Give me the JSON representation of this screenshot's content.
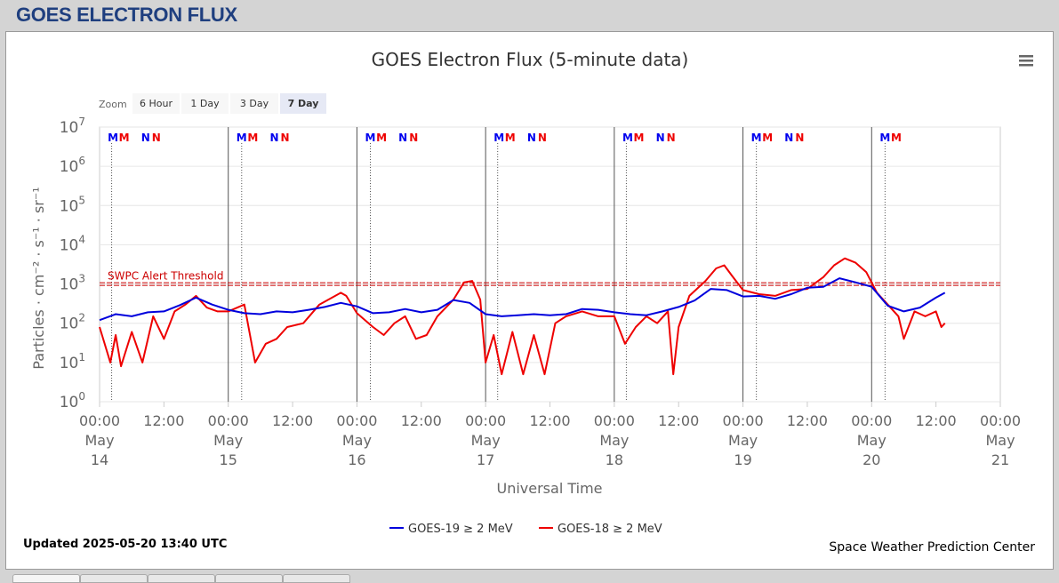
{
  "page": {
    "title": "GOES ELECTRON FLUX"
  },
  "chart_data": {
    "type": "line",
    "title": "GOES Electron Flux (5-minute data)",
    "xlabel": "Universal Time",
    "ylabel": "Particles · cm⁻² · s⁻¹ · sr⁻¹",
    "yscale": "log",
    "ylim": [
      1,
      10000000
    ],
    "xlim": [
      "2025-05-14 00:00",
      "2025-05-21 00:00"
    ],
    "yticks": [
      {
        "value": 1,
        "base": "10",
        "exp": "0"
      },
      {
        "value": 10,
        "base": "10",
        "exp": "1"
      },
      {
        "value": 100,
        "base": "10",
        "exp": "2"
      },
      {
        "value": 1000,
        "base": "10",
        "exp": "3"
      },
      {
        "value": 10000,
        "base": "10",
        "exp": "4"
      },
      {
        "value": 100000,
        "base": "10",
        "exp": "5"
      },
      {
        "value": 1000000,
        "base": "10",
        "exp": "6"
      },
      {
        "value": 10000000,
        "base": "10",
        "exp": "7"
      }
    ],
    "xticks": [
      {
        "x": "2025-05-14 00:00",
        "time": "00:00",
        "month": "May",
        "day": "14"
      },
      {
        "x": "2025-05-14 12:00",
        "time": "12:00"
      },
      {
        "x": "2025-05-15 00:00",
        "time": "00:00",
        "month": "May",
        "day": "15"
      },
      {
        "x": "2025-05-15 12:00",
        "time": "12:00"
      },
      {
        "x": "2025-05-16 00:00",
        "time": "00:00",
        "month": "May",
        "day": "16"
      },
      {
        "x": "2025-05-16 12:00",
        "time": "12:00"
      },
      {
        "x": "2025-05-17 00:00",
        "time": "00:00",
        "month": "May",
        "day": "17"
      },
      {
        "x": "2025-05-17 12:00",
        "time": "12:00"
      },
      {
        "x": "2025-05-18 00:00",
        "time": "00:00",
        "month": "May",
        "day": "18"
      },
      {
        "x": "2025-05-18 12:00",
        "time": "12:00"
      },
      {
        "x": "2025-05-19 00:00",
        "time": "00:00",
        "month": "May",
        "day": "19"
      },
      {
        "x": "2025-05-19 12:00",
        "time": "12:00"
      },
      {
        "x": "2025-05-20 00:00",
        "time": "00:00",
        "month": "May",
        "day": "20"
      },
      {
        "x": "2025-05-20 12:00",
        "time": "12:00"
      },
      {
        "x": "2025-05-21 00:00",
        "time": "00:00",
        "month": "May",
        "day": "21"
      }
    ],
    "threshold": {
      "label": "SWPC Alert Threshold",
      "value": 1000,
      "color": "#cc0000"
    },
    "markers": [
      {
        "x": "2025-05-14 02:30",
        "label": "M",
        "color": "#0000ee"
      },
      {
        "x": "2025-05-14 04:35",
        "label": "M",
        "color": "#ee0000"
      },
      {
        "x": "2025-05-14 08:35",
        "label": "N",
        "color": "#0000ee"
      },
      {
        "x": "2025-05-14 10:35",
        "label": "N",
        "color": "#ee0000"
      },
      {
        "x": "2025-05-15 02:30",
        "label": "M",
        "color": "#0000ee"
      },
      {
        "x": "2025-05-15 04:35",
        "label": "M",
        "color": "#ee0000"
      },
      {
        "x": "2025-05-15 08:35",
        "label": "N",
        "color": "#0000ee"
      },
      {
        "x": "2025-05-15 10:35",
        "label": "N",
        "color": "#ee0000"
      },
      {
        "x": "2025-05-16 02:30",
        "label": "M",
        "color": "#0000ee"
      },
      {
        "x": "2025-05-16 04:35",
        "label": "M",
        "color": "#ee0000"
      },
      {
        "x": "2025-05-16 08:35",
        "label": "N",
        "color": "#0000ee"
      },
      {
        "x": "2025-05-16 10:35",
        "label": "N",
        "color": "#ee0000"
      },
      {
        "x": "2025-05-17 02:30",
        "label": "M",
        "color": "#0000ee"
      },
      {
        "x": "2025-05-17 04:35",
        "label": "M",
        "color": "#ee0000"
      },
      {
        "x": "2025-05-17 08:35",
        "label": "N",
        "color": "#0000ee"
      },
      {
        "x": "2025-05-17 10:35",
        "label": "N",
        "color": "#ee0000"
      },
      {
        "x": "2025-05-18 02:30",
        "label": "M",
        "color": "#0000ee"
      },
      {
        "x": "2025-05-18 04:35",
        "label": "M",
        "color": "#ee0000"
      },
      {
        "x": "2025-05-18 08:35",
        "label": "N",
        "color": "#0000ee"
      },
      {
        "x": "2025-05-18 10:35",
        "label": "N",
        "color": "#ee0000"
      },
      {
        "x": "2025-05-19 02:30",
        "label": "M",
        "color": "#0000ee"
      },
      {
        "x": "2025-05-19 04:35",
        "label": "M",
        "color": "#ee0000"
      },
      {
        "x": "2025-05-19 08:35",
        "label": "N",
        "color": "#0000ee"
      },
      {
        "x": "2025-05-19 10:35",
        "label": "N",
        "color": "#ee0000"
      },
      {
        "x": "2025-05-20 02:30",
        "label": "M",
        "color": "#0000ee"
      },
      {
        "x": "2025-05-20 04:35",
        "label": "M",
        "color": "#ee0000"
      }
    ],
    "midnight_lines": [
      "2025-05-15 00:00",
      "2025-05-16 00:00",
      "2025-05-17 00:00",
      "2025-05-18 00:00",
      "2025-05-19 00:00",
      "2025-05-20 00:00"
    ],
    "dotted_lines": [
      "2025-05-14 02:15",
      "2025-05-15 02:30",
      "2025-05-16 02:30",
      "2025-05-17 02:15",
      "2025-05-18 02:15",
      "2025-05-19 02:30",
      "2025-05-20 02:30"
    ],
    "series": [
      {
        "name": "GOES-19 ≥ 2 MeV",
        "color": "#0000dd",
        "points": [
          [
            "2025-05-14 00:00",
            120
          ],
          [
            "2025-05-14 03:00",
            170
          ],
          [
            "2025-05-14 06:00",
            150
          ],
          [
            "2025-05-14 09:00",
            190
          ],
          [
            "2025-05-14 12:00",
            200
          ],
          [
            "2025-05-14 15:00",
            290
          ],
          [
            "2025-05-14 18:00",
            450
          ],
          [
            "2025-05-14 21:00",
            300
          ],
          [
            "2025-05-15 00:00",
            220
          ],
          [
            "2025-05-15 03:00",
            180
          ],
          [
            "2025-05-15 06:00",
            170
          ],
          [
            "2025-05-15 09:00",
            200
          ],
          [
            "2025-05-15 12:00",
            190
          ],
          [
            "2025-05-15 15:00",
            220
          ],
          [
            "2025-05-15 18:00",
            260
          ],
          [
            "2025-05-15 21:00",
            330
          ],
          [
            "2025-05-16 00:00",
            270
          ],
          [
            "2025-05-16 03:00",
            180
          ],
          [
            "2025-05-16 06:00",
            190
          ],
          [
            "2025-05-16 09:00",
            230
          ],
          [
            "2025-05-16 12:00",
            190
          ],
          [
            "2025-05-16 15:00",
            220
          ],
          [
            "2025-05-16 18:00",
            390
          ],
          [
            "2025-05-16 21:00",
            330
          ],
          [
            "2025-05-17 00:00",
            170
          ],
          [
            "2025-05-17 03:00",
            150
          ],
          [
            "2025-05-17 06:00",
            160
          ],
          [
            "2025-05-17 09:00",
            170
          ],
          [
            "2025-05-17 12:00",
            160
          ],
          [
            "2025-05-17 15:00",
            170
          ],
          [
            "2025-05-17 18:00",
            230
          ],
          [
            "2025-05-17 21:00",
            220
          ],
          [
            "2025-05-18 00:00",
            190
          ],
          [
            "2025-05-18 03:00",
            170
          ],
          [
            "2025-05-18 06:00",
            160
          ],
          [
            "2025-05-18 09:00",
            200
          ],
          [
            "2025-05-18 12:00",
            260
          ],
          [
            "2025-05-18 15:00",
            380
          ],
          [
            "2025-05-18 18:00",
            750
          ],
          [
            "2025-05-18 21:00",
            700
          ],
          [
            "2025-05-19 00:00",
            480
          ],
          [
            "2025-05-19 03:00",
            500
          ],
          [
            "2025-05-19 06:00",
            420
          ],
          [
            "2025-05-19 09:00",
            550
          ],
          [
            "2025-05-19 12:00",
            800
          ],
          [
            "2025-05-19 15:00",
            850
          ],
          [
            "2025-05-19 18:00",
            1400
          ],
          [
            "2025-05-19 21:00",
            1100
          ],
          [
            "2025-05-20 00:00",
            850
          ],
          [
            "2025-05-20 03:00",
            280
          ],
          [
            "2025-05-20 06:00",
            200
          ],
          [
            "2025-05-20 09:00",
            250
          ],
          [
            "2025-05-20 12:00",
            450
          ],
          [
            "2025-05-20 13:40",
            600
          ]
        ]
      },
      {
        "name": "GOES-18 ≥ 2 MeV",
        "color": "#ee0000",
        "points": [
          [
            "2025-05-14 00:00",
            80
          ],
          [
            "2025-05-14 02:00",
            10
          ],
          [
            "2025-05-14 03:00",
            50
          ],
          [
            "2025-05-14 04:00",
            8
          ],
          [
            "2025-05-14 06:00",
            60
          ],
          [
            "2025-05-14 08:00",
            10
          ],
          [
            "2025-05-14 10:00",
            150
          ],
          [
            "2025-05-14 12:00",
            40
          ],
          [
            "2025-05-14 14:00",
            200
          ],
          [
            "2025-05-14 16:00",
            300
          ],
          [
            "2025-05-14 18:00",
            500
          ],
          [
            "2025-05-14 20:00",
            250
          ],
          [
            "2025-05-14 22:00",
            200
          ],
          [
            "2025-05-15 00:00",
            200
          ],
          [
            "2025-05-15 03:00",
            300
          ],
          [
            "2025-05-15 05:00",
            10
          ],
          [
            "2025-05-15 07:00",
            30
          ],
          [
            "2025-05-15 09:00",
            40
          ],
          [
            "2025-05-15 11:00",
            80
          ],
          [
            "2025-05-15 14:00",
            100
          ],
          [
            "2025-05-15 17:00",
            300
          ],
          [
            "2025-05-15 21:00",
            600
          ],
          [
            "2025-05-15 22:00",
            500
          ],
          [
            "2025-05-16 00:00",
            180
          ],
          [
            "2025-05-16 03:00",
            80
          ],
          [
            "2025-05-16 05:00",
            50
          ],
          [
            "2025-05-16 07:00",
            100
          ],
          [
            "2025-05-16 09:00",
            150
          ],
          [
            "2025-05-16 11:00",
            40
          ],
          [
            "2025-05-16 13:00",
            50
          ],
          [
            "2025-05-16 15:00",
            150
          ],
          [
            "2025-05-16 18:00",
            400
          ],
          [
            "2025-05-16 20:00",
            1100
          ],
          [
            "2025-05-16 21:30",
            1200
          ],
          [
            "2025-05-16 23:00",
            400
          ],
          [
            "2025-05-17 00:00",
            10
          ],
          [
            "2025-05-17 01:30",
            50
          ],
          [
            "2025-05-17 03:00",
            5
          ],
          [
            "2025-05-17 05:00",
            60
          ],
          [
            "2025-05-17 07:00",
            5
          ],
          [
            "2025-05-17 09:00",
            50
          ],
          [
            "2025-05-17 11:00",
            5
          ],
          [
            "2025-05-17 13:00",
            100
          ],
          [
            "2025-05-17 15:00",
            150
          ],
          [
            "2025-05-17 18:00",
            200
          ],
          [
            "2025-05-17 21:00",
            150
          ],
          [
            "2025-05-18 00:00",
            150
          ],
          [
            "2025-05-18 02:00",
            30
          ],
          [
            "2025-05-18 04:00",
            80
          ],
          [
            "2025-05-18 06:00",
            150
          ],
          [
            "2025-05-18 08:00",
            100
          ],
          [
            "2025-05-18 10:00",
            200
          ],
          [
            "2025-05-18 11:00",
            5
          ],
          [
            "2025-05-18 12:00",
            80
          ],
          [
            "2025-05-18 14:00",
            500
          ],
          [
            "2025-05-18 17:00",
            1200
          ],
          [
            "2025-05-18 19:00",
            2500
          ],
          [
            "2025-05-18 20:30",
            3000
          ],
          [
            "2025-05-18 22:00",
            1600
          ],
          [
            "2025-05-19 00:00",
            700
          ],
          [
            "2025-05-19 03:00",
            550
          ],
          [
            "2025-05-19 06:00",
            500
          ],
          [
            "2025-05-19 09:00",
            700
          ],
          [
            "2025-05-19 12:00",
            750
          ],
          [
            "2025-05-19 15:00",
            1500
          ],
          [
            "2025-05-19 17:00",
            3000
          ],
          [
            "2025-05-19 19:00",
            4500
          ],
          [
            "2025-05-19 21:00",
            3500
          ],
          [
            "2025-05-19 23:00",
            2000
          ],
          [
            "2025-05-20 01:00",
            600
          ],
          [
            "2025-05-20 03:00",
            300
          ],
          [
            "2025-05-20 05:00",
            150
          ],
          [
            "2025-05-20 06:00",
            40
          ],
          [
            "2025-05-20 08:00",
            200
          ],
          [
            "2025-05-20 10:00",
            150
          ],
          [
            "2025-05-20 12:00",
            200
          ],
          [
            "2025-05-20 13:00",
            80
          ],
          [
            "2025-05-20 13:40",
            100
          ]
        ]
      }
    ]
  },
  "zoom": {
    "label": "Zoom",
    "buttons": [
      "6 Hour",
      "1 Day",
      "3 Day",
      "7 Day"
    ],
    "selected": "7 Day"
  },
  "footer": {
    "updated": "Updated 2025-05-20 13:40 UTC",
    "credit": "Space Weather Prediction Center"
  },
  "colors": {
    "title": "#1f3f7f",
    "axis_text": "#666666",
    "grid": "#e6e6e6"
  },
  "menu": {
    "icon": "hamburger-menu-icon"
  }
}
